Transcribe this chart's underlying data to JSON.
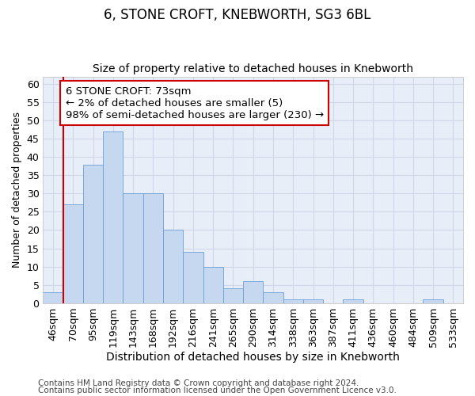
{
  "title": "6, STONE CROFT, KNEBWORTH, SG3 6BL",
  "subtitle": "Size of property relative to detached houses in Knebworth",
  "xlabel": "Distribution of detached houses by size in Knebworth",
  "ylabel": "Number of detached properties",
  "categories": [
    "46sqm",
    "70sqm",
    "95sqm",
    "119sqm",
    "143sqm",
    "168sqm",
    "192sqm",
    "216sqm",
    "241sqm",
    "265sqm",
    "290sqm",
    "314sqm",
    "338sqm",
    "363sqm",
    "387sqm",
    "411sqm",
    "436sqm",
    "460sqm",
    "484sqm",
    "509sqm",
    "533sqm"
  ],
  "values": [
    3,
    27,
    38,
    47,
    30,
    30,
    20,
    14,
    10,
    4,
    6,
    3,
    1,
    1,
    0,
    1,
    0,
    0,
    0,
    1,
    0
  ],
  "bar_color": "#c5d8f0",
  "bar_edge_color": "#6a9fd8",
  "annotation_box_text_line1": "6 STONE CROFT: 73sqm",
  "annotation_box_text_line2": "← 2% of detached houses are smaller (5)",
  "annotation_box_text_line3": "98% of semi-detached houses are larger (230) →",
  "annotation_box_color": "#ffffff",
  "annotation_box_edge_color": "#cc0000",
  "annotation_line_color": "#cc0000",
  "ylim": [
    0,
    62
  ],
  "yticks": [
    0,
    5,
    10,
    15,
    20,
    25,
    30,
    35,
    40,
    45,
    50,
    55,
    60
  ],
  "grid_color": "#d0d8e8",
  "bg_color": "#e8eef8",
  "footer_line1": "Contains HM Land Registry data © Crown copyright and database right 2024.",
  "footer_line2": "Contains public sector information licensed under the Open Government Licence v3.0.",
  "title_fontsize": 12,
  "subtitle_fontsize": 10,
  "xlabel_fontsize": 10,
  "ylabel_fontsize": 9,
  "tick_fontsize": 9,
  "footer_fontsize": 7.5,
  "annotation_fontsize": 9.5
}
